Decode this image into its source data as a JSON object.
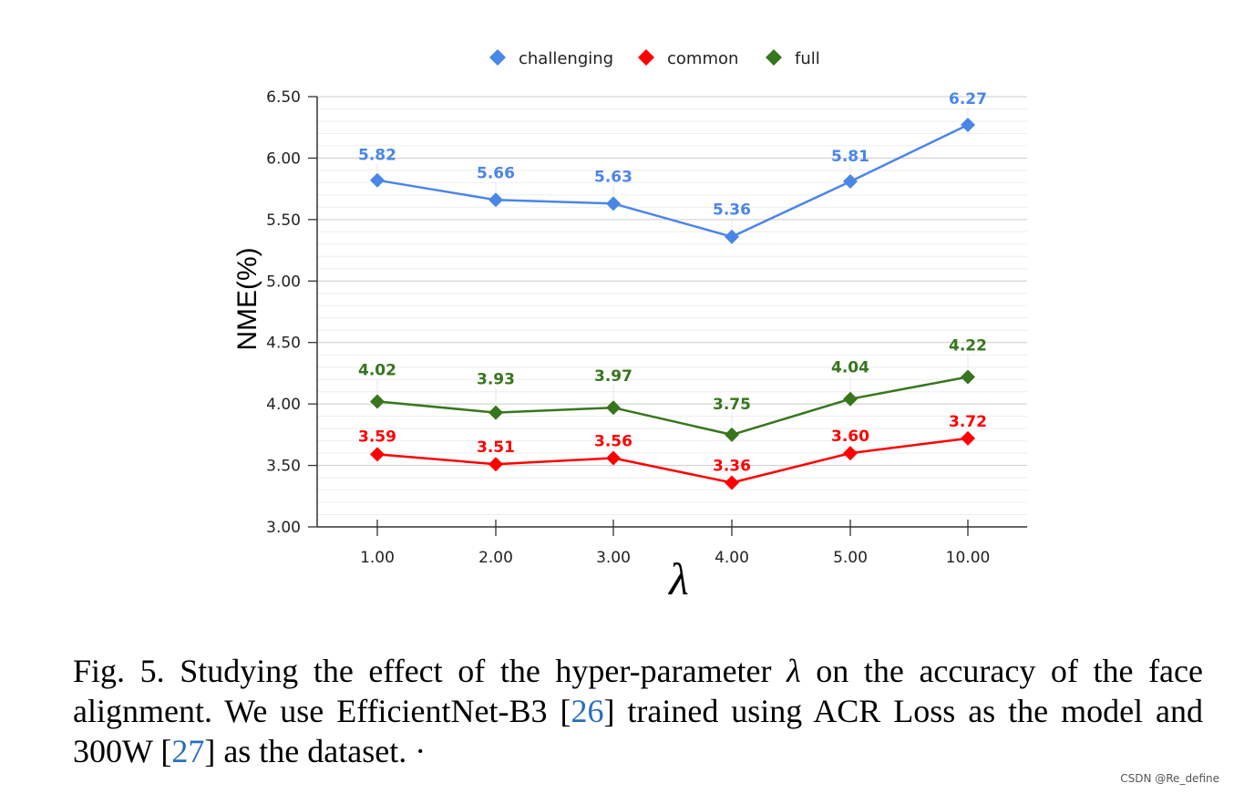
{
  "chart_data": {
    "type": "line",
    "categories": [
      "1.00",
      "2.00",
      "3.00",
      "4.00",
      "5.00",
      "10.00"
    ],
    "series": [
      {
        "name": "challenging",
        "color": "#4a86e8",
        "values": [
          5.82,
          5.66,
          5.63,
          5.36,
          5.81,
          6.27
        ],
        "labels": [
          "5.82",
          "5.66",
          "5.63",
          "5.36",
          "5.81",
          "6.27"
        ]
      },
      {
        "name": "common",
        "color": "#ff0000",
        "values": [
          3.59,
          3.51,
          3.56,
          3.36,
          3.6,
          3.72
        ],
        "labels": [
          "3.59",
          "3.51",
          "3.56",
          "3.36",
          "3.60",
          "3.72"
        ]
      },
      {
        "name": "full",
        "color": "#38761d",
        "values": [
          4.02,
          3.93,
          3.97,
          3.75,
          4.04,
          4.22
        ],
        "labels": [
          "4.02",
          "3.93",
          "3.97",
          "3.75",
          "4.04",
          "4.22"
        ]
      }
    ],
    "yticks": [
      "3.00",
      "3.50",
      "4.00",
      "4.50",
      "5.00",
      "5.50",
      "6.00",
      "6.50"
    ],
    "ylim": [
      3.0,
      6.5
    ],
    "ylabel": "NME(%)",
    "xlabel": "λ",
    "legend_position": "top-center",
    "grid": true,
    "marker": "diamond"
  },
  "caption": {
    "part1": "Fig. 5.  Studying the effect of the hyper-parameter ",
    "lambda": "λ",
    "part2": " on the accuracy of the face alignment. We use EfficientNet-B3 [",
    "ref1": "26",
    "part3": "] trained using ACR Loss as the model and 300W [",
    "ref2": "27",
    "part4": "] as the dataset.",
    "dot": "·"
  },
  "watermark": "CSDN @Re_define"
}
